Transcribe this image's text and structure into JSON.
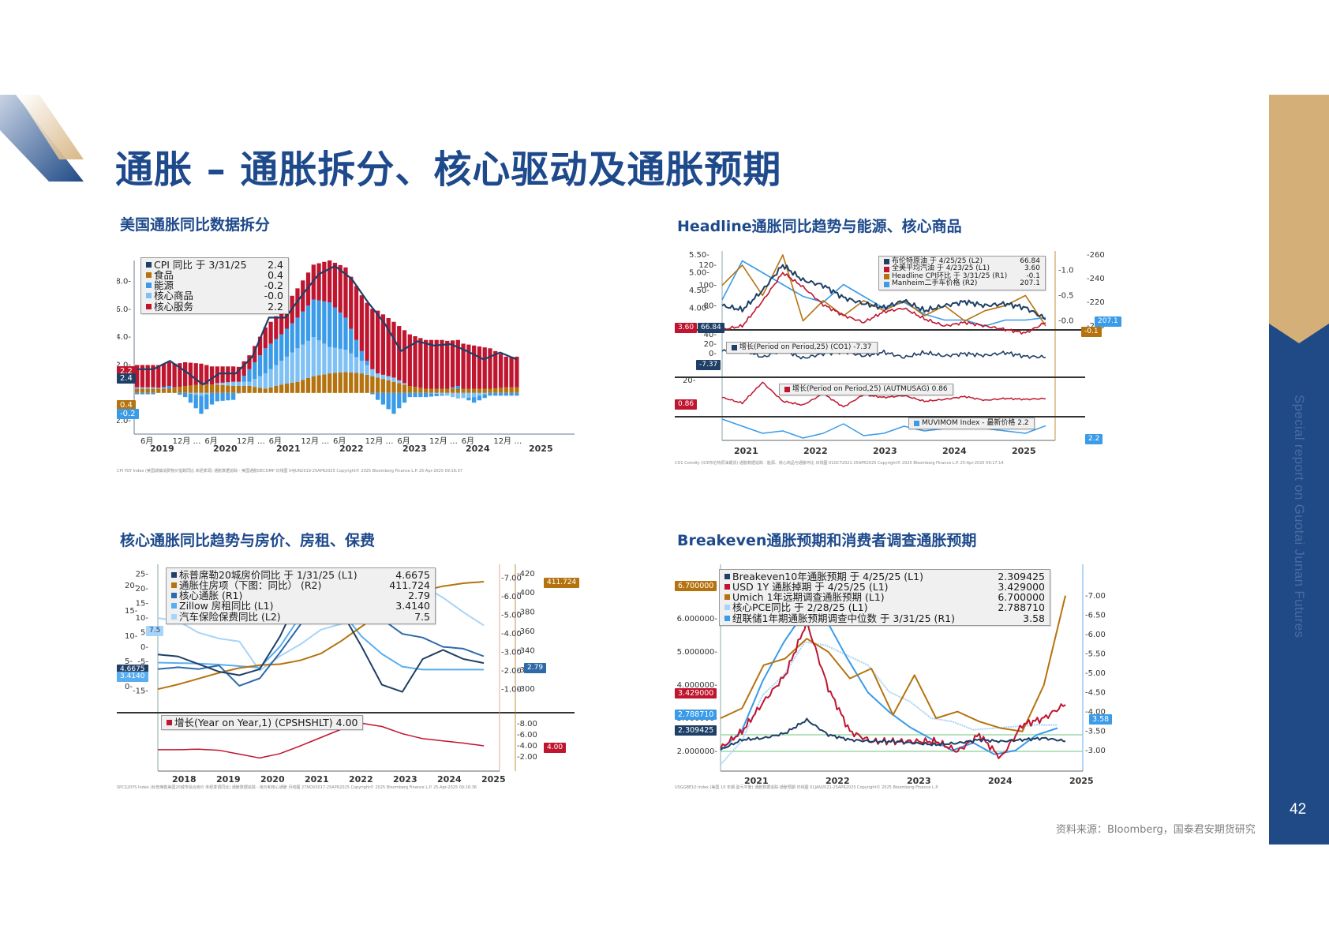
{
  "page": {
    "title": "通胀 – 通胀拆分、核心驱动及通胀预期",
    "side_text": "Special report on Guotai Junan Futures",
    "page_number": "42",
    "source": "资料来源：Bloomberg，国泰君安期货研究",
    "colors": {
      "brand_blue": "#1f4a86",
      "gold": "#d4af78",
      "title_blue": "#1e4a8c"
    }
  },
  "sections": [
    {
      "title": "美国通胀同比数据拆分"
    },
    {
      "title": "Headline通胀同比趋势与能源、核心商品"
    },
    {
      "title": "核心通胀同比趋势与房价、房租、保费"
    },
    {
      "title": "Breakeven通胀预期和消费者调查通胀预期"
    }
  ],
  "chart1": {
    "legend": [
      {
        "label": "CPI 同比  于 3/31/25",
        "value": "2.4",
        "color": "#1f3f66"
      },
      {
        "label": "食品",
        "value": "0.4",
        "color": "#b5730f"
      },
      {
        "label": "能源",
        "value": "-0.2",
        "color": "#3a9be8"
      },
      {
        "label": "核心商品",
        "value": "-0.0",
        "color": "#7fc0f5"
      },
      {
        "label": "核心服务",
        "value": "2.2",
        "color": "#c0152f"
      }
    ],
    "tags": {
      "cpi": "2.4",
      "services": "2.2",
      "food": "0.4",
      "energy": "-0.2"
    },
    "footer": "CPI YOY Index (美国城镇消费物价指数同比 未经季调) 通胀数据追踪 - 美国通胀DECOMP  日线图 04JUN2019-25APR2025    Copyright© 2025 Bloomberg Finance L.P.    25-Apr-2025 09:16:37"
  },
  "chart2": {
    "legend": [
      {
        "label": "布伦特原油  于 4/25/25 (L2)",
        "value": "66.84",
        "color": "#1f3f66"
      },
      {
        "label": "全美平均汽油  于 4/23/25 (L1)",
        "value": "3.60",
        "color": "#c0152f"
      },
      {
        "label": "Headline CPI环比  于 3/31/25 (R1)",
        "value": "-0.1",
        "color": "#b5730f"
      },
      {
        "label": "Manheim二手车价格 (R2)",
        "value": "207.1",
        "color": "#3a9be8"
      }
    ],
    "panel2_legend": {
      "label": "增长(Period on Period,25) (CO1) -7.37",
      "color": "#1f3f66"
    },
    "panel3_legend": {
      "label": "增长(Period on Period,25) (AUTMUSAG) 0.86",
      "color": "#c0152f"
    },
    "panel4_legend": {
      "label": "MUVIMOM Index - 最新价格 2.2",
      "color": "#3a9be8"
    },
    "tags": {
      "gasoline": "3.60",
      "brent": "66.84",
      "cpi_mom": "-0.1",
      "manheim": "207.1",
      "co1": "-7.37",
      "autmusag": "0.86",
      "muvimom": "2.2"
    },
    "footer": "CO1 Comdty (ICE布伦特原油期货) 通胀数据追踪 - 能源、核心商品与通胀环比  日线图 01OCT2021-25APR2025    Copyright© 2025 Bloomberg Finance L.P.    25-Apr-2025 09:17:14"
  },
  "chart3": {
    "legend": [
      {
        "label": "标普席勒20城房价同比  于 1/31/25 (L1)",
        "value": "4.6675",
        "color": "#1f3f66"
      },
      {
        "label": "通胀住房项（下图：同比） (R2)",
        "value": "411.724",
        "color": "#b5730f"
      },
      {
        "label": "核心通胀 (R1)",
        "value": "2.79",
        "color": "#2e6aa8"
      },
      {
        "label": "Zillow 房租同比 (L1)",
        "value": "3.4140",
        "color": "#5aaef0"
      },
      {
        "label": "汽车保险保费同比 (L2)",
        "value": "7.5",
        "color": "#a8d4f7"
      }
    ],
    "panel2_legend": {
      "label": "增长(Year on Year,1) (CPSHSHLT) 4.00",
      "color": "#c0152f"
    },
    "tags": {
      "hpi": "4.6675",
      "zillow": "3.4140",
      "insurance": "7.5",
      "core": "2.79",
      "shelter_idx": "411.724",
      "shelter_yoy": "4.00"
    },
    "footer": "SPCS20YS Index (标普席勒美国20城市综合房价 未经季调同比) 通胀数据追踪 - 房价和核心通胀  月线图 27NOV2017-25APR2025    Copyright© 2025 Bloomberg Finance L.P.    25-Apr-2025 09:16:36"
  },
  "chart4": {
    "legend": [
      {
        "label": "Breakeven10年通胀预期  于 4/25/25 (L1)",
        "value": "2.309425",
        "color": "#1f3f66"
      },
      {
        "label": "USD 1Y 通胀掉期  于 4/25/25 (L1)",
        "value": "3.429000",
        "color": "#c0152f"
      },
      {
        "label": "Umich 1年远期调查通胀预期 (L1)",
        "value": "6.700000",
        "color": "#b5730f"
      },
      {
        "label": "核心PCE同比  于 2/28/25 (L1)",
        "value": "2.788710",
        "color": "#a8d4f7"
      },
      {
        "label": "纽联储1年期通胀预期调查中位数  于 3/31/25 (R1)",
        "value": "3.58",
        "color": "#3a9be8"
      }
    ],
    "tags": {
      "umich": "6.700000",
      "swap": "3.429000",
      "pce": "2.788710",
      "breakeven": "2.309425",
      "nyfed": "3.58"
    },
    "footer": "USGGBE10 Index (美国 10 年期 盈亏平衡) 通胀数据追踪-通胀预期  日线图 01JAN2021-25APR2025    Copyright© 2025 Bloomberg Finance L.P."
  },
  "chart_data": [
    {
      "type": "bar",
      "title": "美国通胀同比数据拆分",
      "xlabel": "",
      "ylabel": "",
      "ylim": [
        -2.5,
        9.5
      ],
      "yticks": [
        -2.0,
        2.0,
        4.0,
        6.0,
        8.0
      ],
      "x_tick_labels": [
        "6月",
        "12月",
        "6月",
        "12月",
        "6月",
        "12月",
        "6月",
        "12月",
        "6月",
        "12月",
        "6月",
        "12月"
      ],
      "year_labels": [
        "2019",
        "2020",
        "2021",
        "2022",
        "2023",
        "2024",
        "2025"
      ],
      "categories": [
        "2019-06",
        "2019-09",
        "2019-12",
        "2020-03",
        "2020-06",
        "2020-09",
        "2020-12",
        "2021-03",
        "2021-06",
        "2021-09",
        "2021-12",
        "2022-03",
        "2022-06",
        "2022-09",
        "2022-12",
        "2023-03",
        "2023-06",
        "2023-09",
        "2023-12",
        "2024-03",
        "2024-06",
        "2024-09",
        "2024-12",
        "2025-03"
      ],
      "series": [
        {
          "name": "CPI 同比",
          "type": "line",
          "values": [
            1.7,
            1.7,
            2.3,
            1.5,
            0.6,
            1.4,
            1.4,
            2.6,
            5.4,
            5.4,
            7.0,
            8.5,
            9.1,
            8.2,
            6.5,
            5.0,
            3.0,
            3.7,
            3.4,
            3.5,
            3.0,
            2.4,
            2.9,
            2.4
          ]
        },
        {
          "name": "食品",
          "values": [
            0.3,
            0.3,
            0.3,
            0.5,
            0.6,
            0.6,
            0.5,
            0.5,
            0.3,
            0.6,
            0.8,
            1.2,
            1.4,
            1.5,
            1.4,
            1.1,
            0.8,
            0.5,
            0.3,
            0.3,
            0.3,
            0.3,
            0.3,
            0.4
          ]
        },
        {
          "name": "能源",
          "values": [
            -0.1,
            -0.1,
            0.2,
            -0.3,
            -1.3,
            -0.6,
            -0.5,
            0.9,
            1.8,
            1.9,
            2.2,
            2.7,
            3.2,
            2.3,
            0.7,
            -0.5,
            -1.5,
            -0.3,
            -0.3,
            -0.1,
            0.2,
            -0.4,
            -0.2,
            -0.2
          ]
        },
        {
          "name": "核心商品",
          "values": [
            0.1,
            0.1,
            0.0,
            0.0,
            -0.2,
            0.1,
            0.3,
            0.3,
            1.1,
            1.7,
            2.4,
            2.8,
            1.9,
            1.6,
            0.9,
            0.3,
            0.3,
            0.0,
            0.0,
            -0.1,
            -0.4,
            -0.3,
            0.0,
            0.0
          ]
        },
        {
          "name": "核心服务",
          "values": [
            1.6,
            1.6,
            1.7,
            1.7,
            1.5,
            1.2,
            1.1,
            1.0,
            1.5,
            1.7,
            2.1,
            2.5,
            3.0,
            3.6,
            4.0,
            4.5,
            4.0,
            3.7,
            3.5,
            3.5,
            3.3,
            3.1,
            2.9,
            2.2
          ]
        }
      ]
    },
    {
      "type": "line",
      "title": "Headline通胀同比趋势与能源、核心商品",
      "year_labels": [
        "2021",
        "2022",
        "2023",
        "2024",
        "2025"
      ],
      "panels": [
        {
          "yaxes": {
            "L1": [
              3.5,
              5.5
            ],
            "L2": [
              60,
              130
            ],
            "R1": [
              -0.1,
              1.3
            ],
            "R2": [
              200,
              260
            ]
          },
          "yticks_L1": [
            4.0,
            4.5,
            5.0,
            5.5
          ],
          "yticks_L2": [
            60,
            80,
            100,
            120
          ],
          "yticks_R1": [
            0.0,
            0.5,
            1.0
          ],
          "yticks_R2": [
            200,
            220,
            240,
            260
          ],
          "series": [
            {
              "name": "布伦特原油 (L2)",
              "last": 66.84,
              "values": [
                80,
                76,
                95,
                120,
                105,
                100,
                88,
                82,
                78,
                85,
                75,
                80,
                84,
                80,
                82,
                78,
                67
              ]
            },
            {
              "name": "全美平均汽油 (L1)",
              "last": 3.6,
              "values": [
                3.4,
                3.5,
                4.2,
                5.0,
                4.6,
                4.1,
                3.8,
                3.6,
                3.9,
                4.0,
                3.7,
                3.5,
                3.6,
                3.5,
                3.4,
                3.3,
                3.6
              ]
            },
            {
              "name": "Headline CPI环比 (R1)",
              "last": -0.1,
              "values": [
                0.7,
                1.1,
                0.5,
                1.3,
                0.0,
                0.4,
                0.1,
                0.4,
                0.2,
                0.4,
                0.1,
                0.3,
                0.0,
                0.2,
                0.3,
                0.5,
                -0.1
              ]
            },
            {
              "name": "Manheim二手车价格 (R2)",
              "last": 207.1,
              "values": [
                222,
                255,
                245,
                235,
                225,
                220,
                235,
                225,
                215,
                220,
                210,
                205,
                205,
                200,
                205,
                205,
                207.1
              ]
            }
          ]
        },
        {
          "name": "增长(Period on Period,25) (CO1)",
          "last": -7.37,
          "yticks": [
            -20,
            0,
            20,
            40
          ]
        },
        {
          "name": "增长(Period on Period,25) (AUTMUSAG)",
          "last": 0.86,
          "yticks": [
            20
          ]
        },
        {
          "name": "MUVIMOM Index - 最新价格",
          "last": 2.2
        }
      ]
    },
    {
      "type": "line",
      "title": "核心通胀同比趋势与房价、房租、保费",
      "year_labels": [
        "2018",
        "2019",
        "2020",
        "2021",
        "2022",
        "2023",
        "2024",
        "2025"
      ],
      "yaxes": {
        "L1": [
          -3,
          23
        ],
        "L2": [
          -17,
          26
        ],
        "R1": [
          0.5,
          7.2
        ],
        "R2": [
          290,
          422
        ]
      },
      "yticks_L1": [
        0,
        5,
        10,
        15,
        20
      ],
      "yticks_L2": [
        -15,
        -10,
        -5,
        0,
        5,
        10,
        15,
        20,
        25
      ],
      "yticks_R1": [
        1.0,
        2.0,
        3.0,
        4.0,
        5.0,
        6.0,
        7.0
      ],
      "yticks_R2": [
        300,
        320,
        340,
        360,
        380,
        400,
        420
      ],
      "series": [
        {
          "name": "标普席勒20城房价同比 (L1)",
          "last": 4.6675,
          "values": [
            6.4,
            6.0,
            4.5,
            3.0,
            2.3,
            3.5,
            10.0,
            18.5,
            20.7,
            15.0,
            8.0,
            0.4,
            -1.0,
            5.5,
            7.3,
            5.5,
            4.7
          ]
        },
        {
          "name": "通胀住房项 (R2)",
          "last": 411.724,
          "values": [
            300,
            305,
            311,
            317,
            322,
            325,
            326,
            330,
            337,
            350,
            365,
            380,
            395,
            402,
            407,
            410,
            411.7
          ]
        },
        {
          "name": "核心通胀 (R1)",
          "last": 2.79,
          "values": [
            2.1,
            2.2,
            2.1,
            2.3,
            1.2,
            1.6,
            3.0,
            4.5,
            6.0,
            6.3,
            5.6,
            4.8,
            4.0,
            3.8,
            3.3,
            3.2,
            2.79
          ]
        },
        {
          "name": "Zillow 房租同比 (L1)",
          "last": 3.414,
          "values": [
            4.8,
            4.7,
            4.6,
            4.4,
            4.1,
            3.8,
            8.0,
            14.0,
            16.0,
            15.0,
            10.0,
            6.5,
            4.0,
            3.4,
            3.4,
            3.4,
            3.4
          ]
        },
        {
          "name": "汽车保险保费同比 (L2)",
          "last": 7.5,
          "values": [
            10,
            9,
            5,
            3,
            2,
            -8,
            -3,
            1,
            6,
            8,
            12,
            18,
            22,
            21,
            17,
            12,
            7.5
          ]
        }
      ],
      "panel2": {
        "name": "增长(Year on Year,1) (CPSHSHLT)",
        "last": 4.0,
        "yticks": [
          2.0,
          4.0,
          6.0,
          8.0
        ],
        "values": [
          3.3,
          3.3,
          3.4,
          3.2,
          2.5,
          1.8,
          2.6,
          4.0,
          5.5,
          7.0,
          8.1,
          7.5,
          6.2,
          5.3,
          4.9,
          4.5,
          4.0
        ]
      }
    },
    {
      "type": "line",
      "title": "Breakeven通胀预期和消费者调查通胀预期",
      "year_labels": [
        "2021",
        "2022",
        "2023",
        "2024",
        "2025"
      ],
      "yaxes": {
        "L1": [
          1.5,
          7.2
        ],
        "R1": [
          2.6,
          7.1
        ]
      },
      "yticks_L1": [
        2.0,
        3.0,
        4.0,
        5.0,
        6.0,
        7.0
      ],
      "yticks_R1": [
        3.0,
        3.5,
        4.0,
        4.5,
        5.0,
        5.5,
        6.0,
        6.5,
        7.0
      ],
      "reference_lines": [
        2.0,
        2.5
      ],
      "series": [
        {
          "name": "Breakeven10年通胀预期 (L1)",
          "last": 2.309425,
          "values": [
            2.05,
            2.35,
            2.4,
            2.55,
            2.95,
            2.5,
            2.35,
            2.3,
            2.3,
            2.25,
            2.2,
            2.25,
            2.35,
            2.3,
            2.35,
            2.4,
            2.31
          ]
        },
        {
          "name": "USD 1Y 通胀掉期 (L1)",
          "last": 3.429,
          "values": [
            2.1,
            2.6,
            3.5,
            4.3,
            5.9,
            3.9,
            2.6,
            2.3,
            2.3,
            2.3,
            2.3,
            2.0,
            2.5,
            1.8,
            2.8,
            3.0,
            3.43
          ]
        },
        {
          "name": "Umich 1年远期调查通胀预期 (L1)",
          "last": 6.7,
          "values": [
            3.0,
            3.3,
            4.6,
            4.8,
            5.4,
            5.0,
            4.2,
            4.5,
            3.1,
            4.3,
            3.0,
            3.2,
            2.9,
            2.7,
            2.6,
            4.0,
            6.7
          ]
        },
        {
          "name": "核心PCE同比 (L1)",
          "last": 2.78871,
          "values": [
            1.6,
            2.3,
            3.7,
            4.3,
            5.3,
            5.2,
            4.9,
            4.6,
            3.8,
            3.5,
            3.0,
            2.9,
            2.65,
            2.7,
            2.75,
            2.8,
            2.79
          ]
        },
        {
          "name": "纽联储1年期通胀预期调查中位数 (R1)",
          "last": 3.58,
          "values": [
            3.0,
            3.5,
            4.8,
            5.8,
            6.6,
            6.4,
            5.4,
            4.5,
            4.0,
            3.6,
            3.3,
            3.0,
            3.2,
            2.9,
            3.0,
            3.4,
            3.58
          ]
        }
      ]
    }
  ]
}
